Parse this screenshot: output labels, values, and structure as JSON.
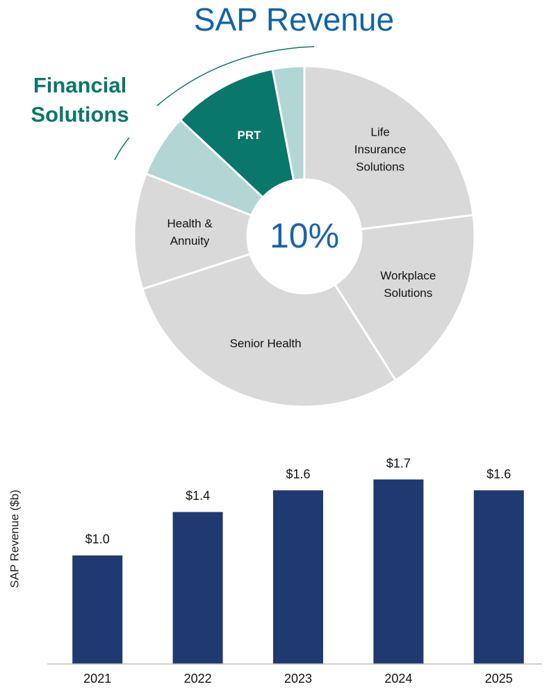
{
  "chart_data": [
    {
      "type": "donut",
      "title": "SAP Revenue",
      "center_label": "10%",
      "annotation": [
        "Financial",
        "Solutions"
      ],
      "labels": [
        [
          "Life",
          "Insurance",
          "Solutions"
        ],
        [
          "Workplace",
          "Solutions"
        ],
        [
          "Senior Health"
        ],
        [
          "Health &",
          "Annuity"
        ],
        null,
        [
          "PRT"
        ],
        null
      ],
      "values": [
        23,
        18,
        29,
        11,
        6,
        10,
        3
      ],
      "colors": [
        "#d9d9d9",
        "#d9d9d9",
        "#d9d9d9",
        "#d9d9d9",
        "#b2d6d4",
        "#0a776b",
        "#b2d6d4"
      ]
    },
    {
      "type": "bar",
      "y_label": "SAP Revenue ($b)",
      "categories": [
        "2021",
        "2022",
        "2023",
        "2024",
        "2025"
      ],
      "values": [
        1.0,
        1.4,
        1.6,
        1.7,
        1.6
      ],
      "value_labels": [
        "$1.0",
        "$1.4",
        "$1.6",
        "$1.7",
        "$1.6"
      ],
      "color": "#1f3a70",
      "ylim": [
        0,
        1.8
      ]
    }
  ]
}
